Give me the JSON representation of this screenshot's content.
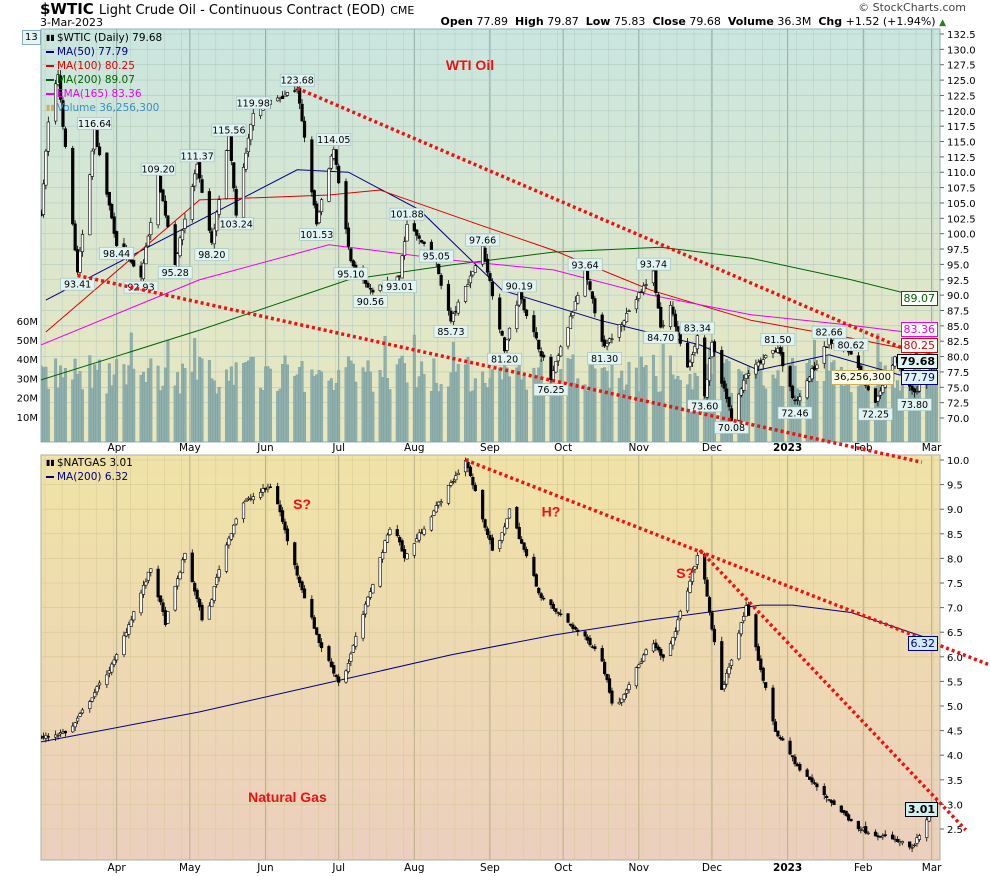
{
  "header": {
    "symbol": "$WTIC",
    "title": "Light Crude Oil - Continuous Contract (EOD)",
    "exchange": "CME",
    "date": "3-Mar-2023",
    "brand": "© StockCharts.com",
    "quote": {
      "open_label": "Open",
      "open": "77.89",
      "high_label": "High",
      "high": "79.87",
      "low_label": "Low",
      "low": "75.83",
      "close_label": "Close",
      "close": "79.68",
      "volume_label": "Volume",
      "volume": "36.3M",
      "chg_label": "Chg",
      "chg": "+1.52 (+1.94%)",
      "chg_icon": "up-triangle-icon"
    }
  },
  "colors": {
    "ma50": "#000080",
    "ma100": "#e00000",
    "ma200": "#006400",
    "ema165": "#ee00ee",
    "volume": "#3a8fc0",
    "trendline": "#ee1111",
    "annotation": "#ee1111"
  },
  "upper_legend": {
    "main": "$WTIC (Daily) 79.68",
    "ma50": "MA(50) 77.79",
    "ma100": "MA(100) 80.25",
    "ma200": "MA(200) 89.07",
    "ema165": "EMA(165) 83.36",
    "volume": "Volume 36,256,300"
  },
  "lower_legend": {
    "main": "$NATGAS 3.01",
    "ma200": "MA(200) 6.32"
  },
  "upper_tags": {
    "ma200": "89.07",
    "ema165": "83.36",
    "ma100": "80.25",
    "close": "79.68",
    "ma50": "77.79",
    "volume": "36,256,300"
  },
  "lower_tags": {
    "ma200": "6.32",
    "close": "3.01"
  },
  "clipped_left_label": "13",
  "chart_data": [
    {
      "type": "candlestick",
      "title": "WTI Oil",
      "symbol": "$WTIC",
      "period": "Daily",
      "ylim": [
        68.5,
        133.5
      ],
      "y_ticks": [
        "132.5",
        "130.0",
        "127.5",
        "125.0",
        "122.5",
        "120.0",
        "117.5",
        "115.0",
        "112.5",
        "110.0",
        "107.5",
        "105.0",
        "102.5",
        "100.0",
        "97.5",
        "95.0",
        "92.5",
        "90.0",
        "87.5",
        "85.0",
        "82.5",
        "80.0",
        "77.5",
        "75.0",
        "72.5",
        "70.0"
      ],
      "volume_ticks": [
        "60M",
        "50M",
        "40M",
        "30M",
        "20M",
        "10M"
      ],
      "x_ticks": [
        {
          "date": "2022-04-01",
          "label": "Apr"
        },
        {
          "date": "2022-05-01",
          "label": "May"
        },
        {
          "date": "2022-06-01",
          "label": "Jun"
        },
        {
          "date": "2022-07-01",
          "label": "Jul"
        },
        {
          "date": "2022-08-01",
          "label": "Aug"
        },
        {
          "date": "2022-09-01",
          "label": "Sep"
        },
        {
          "date": "2022-10-01",
          "label": "Oct"
        },
        {
          "date": "2022-11-01",
          "label": "Nov"
        },
        {
          "date": "2022-12-01",
          "label": "Dec"
        },
        {
          "date": "2023-01-01",
          "label": "2023"
        },
        {
          "date": "2023-02-01",
          "label": "Feb"
        },
        {
          "date": "2023-03-01",
          "label": "Mar"
        }
      ],
      "price_path": [
        [
          "2022-03-01",
          103.4
        ],
        [
          "2022-03-04",
          118
        ],
        [
          "2022-03-08",
          126
        ],
        [
          "2022-03-16",
          93.41
        ],
        [
          "2022-03-23",
          116.64
        ],
        [
          "2022-04-01",
          98.44
        ],
        [
          "2022-04-11",
          92.93
        ],
        [
          "2022-04-18",
          109.2
        ],
        [
          "2022-04-25",
          95.28
        ],
        [
          "2022-05-04",
          111.37
        ],
        [
          "2022-05-10",
          98.2
        ],
        [
          "2022-05-17",
          115.56
        ],
        [
          "2022-05-20",
          103.24
        ],
        [
          "2022-05-27",
          119.98
        ],
        [
          "2022-06-14",
          123.68
        ],
        [
          "2022-06-22",
          101.53
        ],
        [
          "2022-06-29",
          114.05
        ],
        [
          "2022-07-06",
          95.1
        ],
        [
          "2022-07-14",
          90.56
        ],
        [
          "2022-07-26",
          93.01
        ],
        [
          "2022-07-29",
          101.88
        ],
        [
          "2022-08-10",
          95.05
        ],
        [
          "2022-08-16",
          85.73
        ],
        [
          "2022-08-29",
          97.66
        ],
        [
          "2022-09-07",
          81.2
        ],
        [
          "2022-09-13",
          90.19
        ],
        [
          "2022-09-26",
          76.25
        ],
        [
          "2022-10-10",
          93.64
        ],
        [
          "2022-10-18",
          81.3
        ],
        [
          "2022-11-07",
          93.74
        ],
        [
          "2022-11-10",
          84.7
        ],
        [
          "2022-11-14",
          88
        ],
        [
          "2022-11-21",
          78
        ],
        [
          "2022-11-25",
          83.34
        ],
        [
          "2022-11-28",
          73.6
        ],
        [
          "2022-12-01",
          82
        ],
        [
          "2022-12-09",
          70.08
        ],
        [
          "2022-12-15",
          77
        ],
        [
          "2022-12-28",
          81.5
        ],
        [
          "2023-01-04",
          72.46
        ],
        [
          "2023-01-18",
          82.66
        ],
        [
          "2023-01-27",
          80.62
        ],
        [
          "2023-02-06",
          72.25
        ],
        [
          "2023-02-14",
          79.5
        ],
        [
          "2023-02-22",
          73.8
        ],
        [
          "2023-03-03",
          79.68
        ]
      ],
      "annotations": [
        {
          "date": "2022-03-16",
          "value": "93.41",
          "pos": "below"
        },
        {
          "date": "2022-03-23",
          "value": "116.64",
          "pos": "above"
        },
        {
          "date": "2022-04-01",
          "value": "98.44",
          "pos": "below"
        },
        {
          "date": "2022-04-11",
          "value": "92.93",
          "pos": "below"
        },
        {
          "date": "2022-04-18",
          "value": "109.20",
          "pos": "above"
        },
        {
          "date": "2022-04-25",
          "value": "95.28",
          "pos": "below"
        },
        {
          "date": "2022-05-04",
          "value": "111.37",
          "pos": "above"
        },
        {
          "date": "2022-05-10",
          "value": "98.20",
          "pos": "below"
        },
        {
          "date": "2022-05-17",
          "value": "115.56",
          "pos": "above"
        },
        {
          "date": "2022-05-20",
          "value": "103.24",
          "pos": "below"
        },
        {
          "date": "2022-05-27",
          "value": "119.98",
          "pos": "above"
        },
        {
          "date": "2022-06-14",
          "value": "123.68",
          "pos": "above"
        },
        {
          "date": "2022-06-22",
          "value": "101.53",
          "pos": "below"
        },
        {
          "date": "2022-06-29",
          "value": "114.05",
          "pos": "above"
        },
        {
          "date": "2022-07-06",
          "value": "95.10",
          "pos": "below"
        },
        {
          "date": "2022-07-14",
          "value": "90.56",
          "pos": "below"
        },
        {
          "date": "2022-07-26",
          "value": "93.01",
          "pos": "below"
        },
        {
          "date": "2022-07-29",
          "value": "101.88",
          "pos": "above"
        },
        {
          "date": "2022-08-10",
          "value": "95.05",
          "pos": "above"
        },
        {
          "date": "2022-08-16",
          "value": "85.73",
          "pos": "below"
        },
        {
          "date": "2022-08-29",
          "value": "97.66",
          "pos": "above"
        },
        {
          "date": "2022-09-07",
          "value": "81.20",
          "pos": "below"
        },
        {
          "date": "2022-09-13",
          "value": "90.19",
          "pos": "above"
        },
        {
          "date": "2022-09-26",
          "value": "76.25",
          "pos": "below"
        },
        {
          "date": "2022-10-10",
          "value": "93.64",
          "pos": "above"
        },
        {
          "date": "2022-10-18",
          "value": "81.30",
          "pos": "below"
        },
        {
          "date": "2022-11-07",
          "value": "93.74",
          "pos": "above"
        },
        {
          "date": "2022-11-10",
          "value": "84.70",
          "pos": "below"
        },
        {
          "date": "2022-11-25",
          "value": "83.34",
          "pos": "above"
        },
        {
          "date": "2022-11-28",
          "value": "73.60",
          "pos": "below"
        },
        {
          "date": "2022-12-09",
          "value": "70.08",
          "pos": "below"
        },
        {
          "date": "2022-12-28",
          "value": "81.50",
          "pos": "above"
        },
        {
          "date": "2023-01-04",
          "value": "72.46",
          "pos": "below"
        },
        {
          "date": "2023-01-18",
          "value": "82.66",
          "pos": "above"
        },
        {
          "date": "2023-01-27",
          "value": "80.62",
          "pos": "above"
        },
        {
          "date": "2023-02-06",
          "value": "72.25",
          "pos": "below"
        },
        {
          "date": "2023-02-22",
          "value": "73.80",
          "pos": "below"
        }
      ],
      "overlays": [
        {
          "name": "MA(50)",
          "color_key": "ma50",
          "points": [
            [
              "2022-03-03",
              89.2
            ],
            [
              "2022-06-14",
              110.4
            ],
            [
              "2022-07-05",
              110
            ],
            [
              "2022-08-03",
              103.9
            ],
            [
              "2022-09-06",
              90.8
            ],
            [
              "2022-10-16",
              85.9
            ],
            [
              "2022-11-26",
              81.9
            ],
            [
              "2022-12-20",
              77.8
            ],
            [
              "2023-01-18",
              80.3
            ],
            [
              "2023-02-16",
              77
            ],
            [
              "2023-03-03",
              77.79
            ]
          ]
        },
        {
          "name": "MA(100)",
          "color_key": "ma100",
          "points": [
            [
              "2022-03-03",
              84
            ],
            [
              "2022-05-05",
              105.5
            ],
            [
              "2022-06-27",
              106.3
            ],
            [
              "2022-07-18",
              107.1
            ],
            [
              "2022-08-28",
              101.4
            ],
            [
              "2022-09-27",
              97.3
            ],
            [
              "2022-11-06",
              90.8
            ],
            [
              "2022-12-17",
              85.9
            ],
            [
              "2023-01-27",
              83
            ],
            [
              "2023-03-03",
              80.25
            ]
          ]
        },
        {
          "name": "MA(200)",
          "color_key": "ma200",
          "points": [
            [
              "2022-03-01",
              76.2
            ],
            [
              "2022-05-05",
              84.3
            ],
            [
              "2022-07-05",
              92.5
            ],
            [
              "2022-08-16",
              94.9
            ],
            [
              "2022-09-27",
              97.0
            ],
            [
              "2022-11-10",
              97.8
            ],
            [
              "2022-12-17",
              96.0
            ],
            [
              "2023-01-27",
              92.5
            ],
            [
              "2023-03-03",
              89.07
            ]
          ]
        },
        {
          "name": "EMA(165)",
          "color_key": "ema165",
          "points": [
            [
              "2022-03-01",
              81.9
            ],
            [
              "2022-05-05",
              92.5
            ],
            [
              "2022-06-27",
              98.2
            ],
            [
              "2022-08-16",
              95.7
            ],
            [
              "2022-09-27",
              94.1
            ],
            [
              "2022-11-06",
              90.0
            ],
            [
              "2022-12-17",
              86.8
            ],
            [
              "2023-01-27",
              85.1
            ],
            [
              "2023-03-03",
              83.36
            ]
          ]
        }
      ],
      "volume": {
        "last": 36256300,
        "typical_range_millions": [
          22,
          45
        ]
      },
      "trendlines": [
        {
          "from": [
            "2022-06-14",
            123.68
          ],
          "to": [
            "2023-03-03",
            79.0
          ]
        },
        {
          "from": [
            "2022-03-16",
            93.2
          ],
          "to": [
            "2023-02-25",
            62.8
          ]
        }
      ]
    },
    {
      "type": "candlestick",
      "title": "Natural Gas",
      "symbol": "$NATGAS",
      "ylim": [
        1.9,
        10.1
      ],
      "y_ticks": [
        "10.0",
        "9.5",
        "9.0",
        "8.5",
        "8.0",
        "7.5",
        "7.0",
        "6.5",
        "6.0",
        "5.5",
        "5.0",
        "4.5",
        "4.0",
        "3.5",
        "3.0",
        "2.5"
      ],
      "price_path": [
        [
          "2022-03-01",
          4.35
        ],
        [
          "2022-03-13",
          4.5
        ],
        [
          "2022-03-31",
          5.9
        ],
        [
          "2022-04-15",
          7.8
        ],
        [
          "2022-04-21",
          6.7
        ],
        [
          "2022-04-29",
          8.1
        ],
        [
          "2022-05-07",
          6.6
        ],
        [
          "2022-05-14",
          8.0
        ],
        [
          "2022-05-22",
          9.1
        ],
        [
          "2022-06-04",
          9.5
        ],
        [
          "2022-06-12",
          8.0
        ],
        [
          "2022-06-23",
          6.3
        ],
        [
          "2022-07-02",
          5.4
        ],
        [
          "2022-07-10",
          6.7
        ],
        [
          "2022-07-23",
          8.8
        ],
        [
          "2022-07-28",
          8.0
        ],
        [
          "2022-08-12",
          9.2
        ],
        [
          "2022-08-22",
          10.0
        ],
        [
          "2022-09-03",
          8.0
        ],
        [
          "2022-09-09",
          9.0
        ],
        [
          "2022-09-22",
          7.2
        ],
        [
          "2022-10-16",
          6.1
        ],
        [
          "2022-10-22",
          4.9
        ],
        [
          "2022-11-06",
          6.3
        ],
        [
          "2022-11-12",
          5.9
        ],
        [
          "2022-11-26",
          8.2
        ],
        [
          "2022-12-05",
          5.3
        ],
        [
          "2022-12-15",
          7.0
        ],
        [
          "2022-12-27",
          4.5
        ],
        [
          "2023-01-06",
          3.7
        ],
        [
          "2023-01-22",
          2.9
        ],
        [
          "2023-01-31",
          2.5
        ],
        [
          "2023-02-18",
          2.2
        ],
        [
          "2023-02-21",
          2.1
        ],
        [
          "2023-03-03",
          3.01
        ]
      ],
      "overlays": [
        {
          "name": "MA(200)",
          "color_key": "ma50",
          "points": [
            [
              "2022-03-01",
              4.27
            ],
            [
              "2022-05-05",
              4.88
            ],
            [
              "2022-07-02",
              5.53
            ],
            [
              "2022-08-16",
              6.04
            ],
            [
              "2022-09-27",
              6.44
            ],
            [
              "2022-11-06",
              6.75
            ],
            [
              "2022-12-21",
              7.05
            ],
            [
              "2023-01-03",
              7.05
            ],
            [
              "2023-01-27",
              6.9
            ],
            [
              "2023-03-03",
              6.32
            ]
          ]
        }
      ],
      "trendlines": [
        {
          "from": [
            "2022-08-22",
            10.0
          ],
          "to": [
            "2023-03-25",
            5.83
          ]
        },
        {
          "from": [
            "2022-11-26",
            8.17
          ],
          "to": [
            "2023-03-15",
            2.48
          ]
        }
      ],
      "text_annotations": [
        {
          "text": "S?",
          "date": "2022-06-16",
          "value": 9.0
        },
        {
          "text": "H?",
          "date": "2022-09-26",
          "value": 8.85
        },
        {
          "text": "S?",
          "date": "2022-11-20",
          "value": 7.6
        },
        {
          "text": "Natural Gas",
          "date": "2022-06-10",
          "value": 3.05
        }
      ]
    }
  ]
}
